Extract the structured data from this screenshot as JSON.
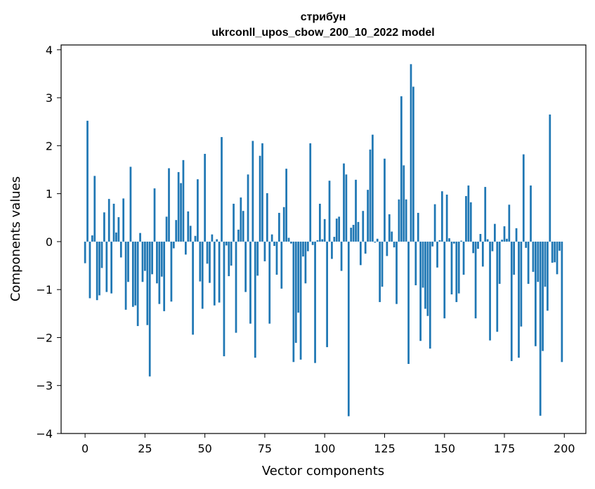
{
  "chart_data": {
    "type": "bar",
    "title": "стрибун",
    "subtitle": "ukrconll_upos_cbow_200_10_2022 model",
    "xlabel": "Vector components",
    "ylabel": "Components values",
    "xlim": [
      -10,
      209
    ],
    "ylim": [
      -4,
      4.1
    ],
    "xticks": [
      0,
      25,
      50,
      75,
      100,
      125,
      150,
      175,
      200
    ],
    "xtick_labels": [
      "0",
      "25",
      "50",
      "75",
      "100",
      "125",
      "150",
      "175",
      "200"
    ],
    "yticks": [
      -4,
      -3,
      -2,
      -1,
      0,
      1,
      2,
      3,
      4
    ],
    "ytick_labels": [
      "−4",
      "−3",
      "−2",
      "−1",
      "0",
      "1",
      "2",
      "3",
      "4"
    ],
    "grid": false,
    "bar_color": "#1f77b4",
    "values": [
      -0.45,
      2.52,
      -1.18,
      0.13,
      1.37,
      -1.22,
      -1.12,
      -0.55,
      0.61,
      -1.05,
      0.89,
      -1.08,
      0.79,
      0.19,
      0.51,
      -0.33,
      0.9,
      -1.42,
      -0.84,
      1.56,
      -1.36,
      -1.33,
      -1.76,
      0.18,
      -0.84,
      -0.61,
      -1.74,
      -2.81,
      -0.68,
      1.11,
      -0.87,
      -1.3,
      -0.73,
      -1.45,
      0.52,
      1.53,
      -1.25,
      -0.14,
      0.45,
      1.45,
      1.22,
      1.7,
      -0.27,
      0.63,
      0.33,
      -1.94,
      0.12,
      1.3,
      -0.83,
      -1.4,
      1.83,
      -0.46,
      -0.86,
      0.15,
      -1.33,
      0.05,
      -1.27,
      2.18,
      -2.39,
      -0.08,
      -0.72,
      -0.5,
      0.79,
      -1.9,
      0.25,
      0.92,
      0.64,
      -1.05,
      1.4,
      -1.71,
      2.1,
      -2.42,
      -0.71,
      1.79,
      2.05,
      -0.41,
      1.01,
      -1.71,
      0.15,
      -0.09,
      -0.69,
      0.6,
      -0.98,
      0.72,
      1.52,
      0.08,
      -0.04,
      -2.51,
      -2.11,
      -1.48,
      -2.46,
      -0.31,
      -0.87,
      -0.2,
      2.05,
      -0.07,
      -2.53,
      0.03,
      0.79,
      0.05,
      0.47,
      -2.2,
      1.27,
      -0.36,
      0.1,
      0.48,
      0.52,
      -0.61,
      1.63,
      1.4,
      -3.64,
      0.29,
      0.35,
      1.29,
      0.41,
      -0.49,
      0.64,
      -0.25,
      1.08,
      1.92,
      2.23,
      -0.02,
      0.06,
      -1.26,
      -0.94,
      1.73,
      -0.3,
      0.57,
      0.21,
      -0.12,
      -1.3,
      0.88,
      3.03,
      1.59,
      0.88,
      -2.55,
      3.7,
      3.23,
      -0.91,
      0.6,
      -2.07,
      -0.96,
      -1.4,
      -1.55,
      -2.23,
      -0.1,
      0.78,
      -0.54,
      0.03,
      1.05,
      -1.6,
      0.98,
      0.07,
      -1.1,
      -0.04,
      -1.26,
      -1.08,
      0.02,
      -0.69,
      0.95,
      1.17,
      0.82,
      -0.24,
      -1.6,
      -0.15,
      0.16,
      -0.52,
      1.14,
      0.05,
      -2.06,
      -0.2,
      0.37,
      -1.88,
      -0.88,
      0.04,
      0.32,
      0.06,
      0.77,
      -2.49,
      -0.69,
      0.28,
      -2.42,
      -1.77,
      1.82,
      -0.13,
      -0.88,
      1.17,
      -0.63,
      -2.18,
      -0.84,
      -3.63,
      -2.28,
      -0.94,
      -1.44,
      2.65,
      -0.44,
      -0.43,
      -0.68,
      -0.19,
      -2.51
    ]
  }
}
